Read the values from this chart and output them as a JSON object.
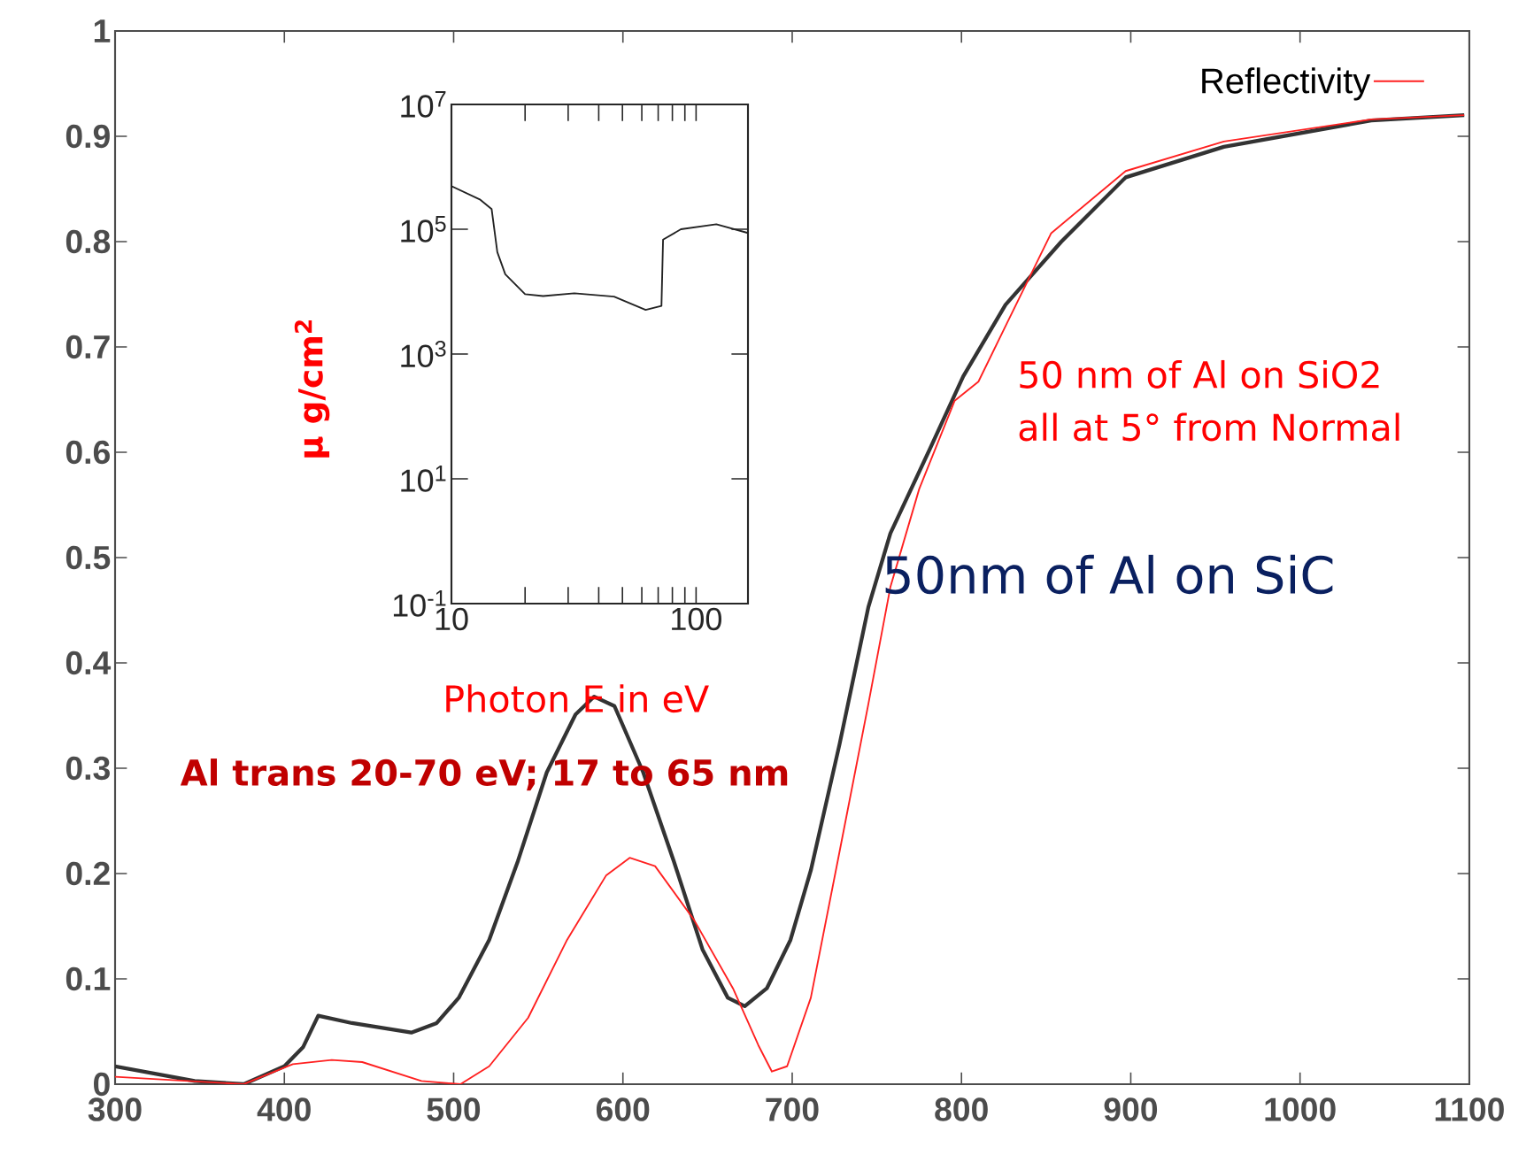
{
  "chart_data": [
    {
      "type": "line",
      "xlim": [
        300,
        1100
      ],
      "ylim": [
        0,
        1
      ],
      "xticks": [
        300,
        400,
        500,
        600,
        700,
        800,
        900,
        1000,
        1100
      ],
      "yticks": [
        {
          "value": 0,
          "label": "0"
        },
        0.1,
        0.2,
        0.3,
        0.4,
        0.5,
        0.6,
        0.7,
        0.8,
        0.9,
        1
      ],
      "legend": "top right",
      "grid": false,
      "marker": "none",
      "line_style": "solid",
      "series": [
        {
          "color": "#333333",
          "x": [
            300,
            347,
            376,
            400,
            411,
            420,
            440,
            475,
            490,
            503,
            521,
            538,
            555,
            572,
            583,
            595,
            612,
            630,
            647,
            662,
            672,
            685,
            699,
            711,
            728,
            745,
            758,
            781,
            801,
            826,
            859,
            897,
            955,
            1042,
            1097
          ],
          "values": [
            0.017,
            0.003,
            0,
            0.017,
            0.035,
            0.065,
            0.058,
            0.049,
            0.058,
            0.082,
            0.137,
            0.212,
            0.296,
            0.351,
            0.368,
            0.359,
            0.296,
            0.212,
            0.128,
            0.082,
            0.074,
            0.091,
            0.137,
            0.203,
            0.323,
            0.453,
            0.523,
            0.602,
            0.672,
            0.74,
            0.8,
            0.861,
            0.89,
            0.915,
            0.92
          ]
        },
        {
          "name": "Reflectivity",
          "color": "#ff2020",
          "x": [
            300,
            376,
            405,
            428,
            446,
            481,
            504,
            521,
            544,
            567,
            590,
            604,
            619,
            642,
            665,
            680,
            688,
            697,
            711,
            728,
            745,
            758,
            775,
            796,
            810,
            827,
            853,
            897,
            955,
            1042,
            1097
          ],
          "values": [
            0.007,
            0,
            0.019,
            0.023,
            0.021,
            0.003,
            0,
            0.017,
            0.063,
            0.137,
            0.198,
            0.215,
            0.207,
            0.156,
            0.091,
            0.037,
            0.012,
            0.017,
            0.082,
            0.221,
            0.361,
            0.472,
            0.565,
            0.649,
            0.667,
            0.723,
            0.808,
            0.867,
            0.895,
            0.916,
            0.92
          ]
        }
      ],
      "annotations": [
        "50 nm of Al on SiO2",
        "all at 5° from Normal",
        "50nm of Al on SiC",
        "Al trans 20-70 eV; 17 to 65 nm"
      ]
    },
    {
      "type": "line",
      "log": "xy",
      "xlabel": "Photon E in eV",
      "ylabel": "μ g/cm$^{2}$",
      "xlim": [
        10,
        163
      ],
      "ylim": [
        0.1,
        10000000
      ],
      "xticks": [
        10,
        100
      ],
      "yticks": [
        {
          "value": 0.1,
          "label": "10$^{-1}$"
        },
        {
          "value": 10,
          "label": "10$^{1}$"
        },
        {
          "value": 1000,
          "label": "10$^{3}$"
        },
        {
          "value": 100000,
          "label": "10$^{5}$"
        },
        {
          "value": 10000000,
          "label": "10$^{7}$"
        }
      ],
      "grid": false,
      "marker": "none",
      "line_style": "solid",
      "series": [
        {
          "color": "#222222",
          "x": [
            10,
            13.06,
            14.6,
            15.4,
            16.6,
            20.0,
            23.7,
            31.8,
            46.2,
            62.2,
            72.2,
            73.3,
            86.7,
            121,
            163
          ],
          "values": [
            490000,
            300000,
            210000,
            43000,
            19000,
            9100,
            8500,
            9400,
            8300,
            5100,
            5900,
            68000,
            100000,
            120000,
            87000
          ]
        }
      ]
    }
  ]
}
